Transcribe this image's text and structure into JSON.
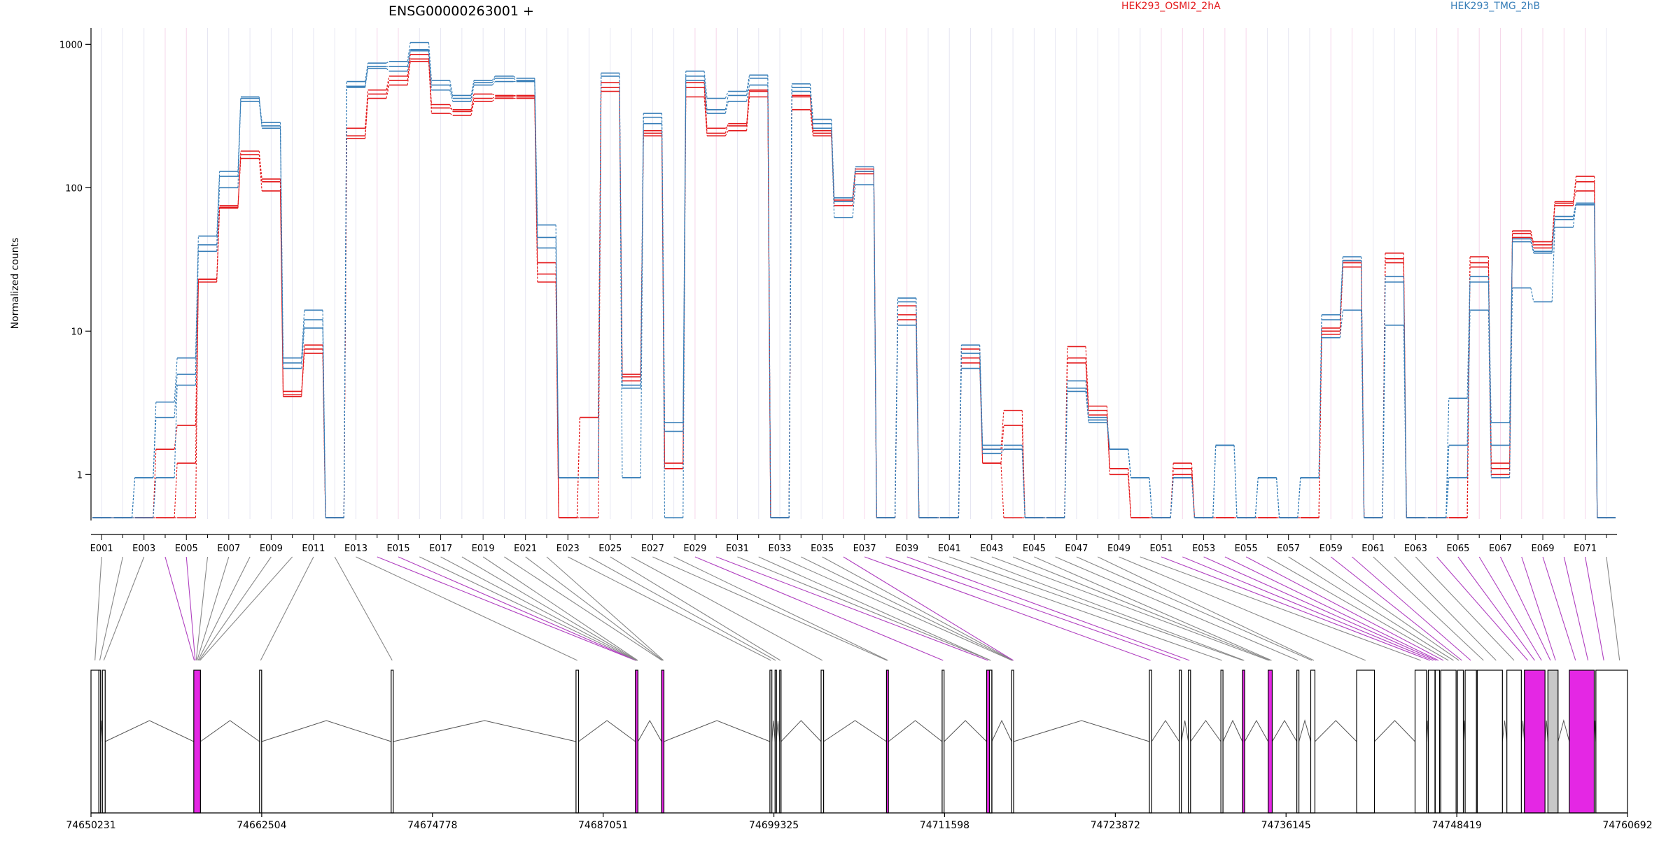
{
  "chart_data": {
    "type": "line",
    "title": "ENSG00000263001 +",
    "ylabel": "Normalized counts",
    "yscale": "log",
    "ylim": [
      0.5,
      1300
    ],
    "ytick_labels": [
      "1",
      "10",
      "100",
      "1000"
    ],
    "ytick_values": [
      1,
      10,
      100,
      1000
    ],
    "legend_position": "top",
    "colors": {
      "HEK293_OSMI2_2hA": "#e41a1c",
      "HEK293_TMG_2hB": "#377eb8",
      "exon_plain": "#ffffff",
      "exon_highlight": "#e427e4",
      "exon_grey": "#c8c8c8",
      "connector_plain": "#888888",
      "connector_highlight": "#b040c0"
    },
    "categories": [
      "E001",
      "E002",
      "E003",
      "E004",
      "E005",
      "E006",
      "E007",
      "E008",
      "E009",
      "E010",
      "E011",
      "E012",
      "E013",
      "E014",
      "E015",
      "E016",
      "E017",
      "E018",
      "E019",
      "E020",
      "E021",
      "E022",
      "E023",
      "E024",
      "E025",
      "E026",
      "E027",
      "E028",
      "E029",
      "E030",
      "E031",
      "E032",
      "E033",
      "E034",
      "E035",
      "E036",
      "E037",
      "E038",
      "E039",
      "E040",
      "E041",
      "E042",
      "E043",
      "E044",
      "E045",
      "E046",
      "E047",
      "E048",
      "E049",
      "E050",
      "E051",
      "E052",
      "E053",
      "E054",
      "E055",
      "E056",
      "E057",
      "E058",
      "E059",
      "E060",
      "E061",
      "E062",
      "E063",
      "E064",
      "E065",
      "E066",
      "E067",
      "E068",
      "E069",
      "E070",
      "E071",
      "E072"
    ],
    "x_tick_labels": [
      "E001",
      "E003",
      "E005",
      "E007",
      "E009",
      "E011",
      "E013",
      "E015",
      "E017",
      "E019",
      "E021",
      "E023",
      "E025",
      "E027",
      "E029",
      "E031",
      "E033",
      "E035",
      "E037",
      "E039",
      "E041",
      "E043",
      "E045",
      "E047",
      "E049",
      "E051",
      "E053",
      "E055",
      "E057",
      "E059",
      "E061",
      "E063",
      "E065",
      "E067",
      "E069",
      "E071"
    ],
    "series": [
      {
        "name": "HEK293_OSMI2_2hA",
        "values": [
          0.5,
          0.5,
          0.5,
          1.5,
          2.2,
          22,
          72,
          170,
          115,
          3.8,
          7.5,
          0.5,
          230,
          450,
          560,
          850,
          360,
          350,
          450,
          440,
          440,
          25,
          0.5,
          2.5,
          540,
          4.5,
          240,
          1.1,
          540,
          260,
          270,
          480,
          0.5,
          430,
          250,
          82,
          135,
          0.5,
          13,
          0.5,
          0.5,
          6.5,
          1.2,
          2.2,
          0.5,
          0.5,
          6.5,
          2.8,
          1.0,
          0.5,
          0.5,
          1.1,
          0.5,
          0.5,
          0.5,
          0.5,
          0.5,
          0.5,
          10,
          30,
          0.5,
          32,
          0.5,
          0.5,
          0.5,
          30,
          1.2,
          50,
          40,
          80,
          110,
          0.5
        ]
      },
      {
        "name": "HEK293_OSMI2_2hA",
        "values": [
          0.5,
          0.5,
          0.5,
          0.5,
          1.2,
          23,
          73,
          180,
          110,
          3.5,
          8.0,
          0.5,
          260,
          480,
          600,
          790,
          380,
          340,
          420,
          430,
          430,
          30,
          0.5,
          2.5,
          500,
          5.0,
          250,
          1.2,
          500,
          240,
          280,
          470,
          0.5,
          440,
          240,
          80,
          130,
          0.5,
          15,
          0.5,
          0.5,
          7.5,
          1.5,
          2.8,
          0.5,
          0.5,
          7.8,
          3.0,
          1.1,
          0.5,
          0.5,
          1.2,
          0.5,
          0.5,
          0.5,
          0.5,
          0.5,
          0.5,
          10.5,
          28,
          0.5,
          35,
          0.5,
          0.5,
          0.5,
          33,
          1.0,
          48,
          38,
          75,
          120,
          0.5
        ]
      },
      {
        "name": "HEK293_OSMI2_2hA",
        "values": [
          0.5,
          0.5,
          0.5,
          0.5,
          0.5,
          23,
          75,
          160,
          95,
          3.6,
          7.0,
          0.5,
          220,
          420,
          520,
          760,
          330,
          320,
          400,
          420,
          420,
          22,
          0.5,
          0.5,
          470,
          4.8,
          230,
          1.1,
          430,
          230,
          250,
          430,
          0.5,
          350,
          230,
          75,
          125,
          0.5,
          12,
          0.5,
          0.5,
          6.0,
          1.2,
          0.5,
          0.5,
          0.5,
          6.0,
          2.6,
          1.1,
          0.5,
          0.5,
          1.0,
          0.5,
          0.5,
          0.5,
          0.5,
          0.5,
          0.5,
          9.5,
          31,
          0.5,
          30,
          0.5,
          0.5,
          0.5,
          28,
          1.1,
          45,
          42,
          78,
          95,
          0.5
        ]
      },
      {
        "name": "HEK293_TMG_2hB",
        "values": [
          0.5,
          0.5,
          0.95,
          3.2,
          6.5,
          46,
          130,
          420,
          285,
          6.5,
          14,
          0.5,
          550,
          740,
          760,
          1030,
          560,
          440,
          560,
          600,
          580,
          55,
          0.95,
          0.95,
          630,
          4.0,
          330,
          2.3,
          650,
          420,
          470,
          610,
          0.5,
          530,
          300,
          85,
          140,
          0.5,
          17,
          0.5,
          0.5,
          8.0,
          1.6,
          1.6,
          0.5,
          0.5,
          4.5,
          2.5,
          1.5,
          0.95,
          0.5,
          0.95,
          0.5,
          1.6,
          0.5,
          0.95,
          0.5,
          0.95,
          13,
          33,
          0.5,
          24,
          0.5,
          0.5,
          3.4,
          24,
          2.3,
          44,
          36,
          63,
          78,
          0.5
        ]
      },
      {
        "name": "HEK293_TMG_2hB",
        "values": [
          0.5,
          0.5,
          0.95,
          2.5,
          5.0,
          40,
          120,
          400,
          270,
          6.0,
          12,
          0.5,
          510,
          700,
          700,
          920,
          520,
          420,
          540,
          580,
          560,
          45,
          0.95,
          0.95,
          600,
          4.2,
          310,
          2.0,
          600,
          350,
          440,
          580,
          0.5,
          500,
          280,
          80,
          130,
          0.5,
          16,
          0.5,
          0.5,
          7.0,
          1.5,
          1.5,
          0.5,
          0.5,
          4.0,
          2.3,
          1.5,
          0.95,
          0.5,
          0.95,
          0.5,
          1.6,
          0.5,
          0.95,
          0.5,
          0.95,
          12,
          31,
          0.5,
          22,
          0.5,
          0.5,
          1.6,
          22,
          1.6,
          42,
          35,
          60,
          76,
          0.5
        ]
      },
      {
        "name": "HEK293_TMG_2hB",
        "values": [
          0.5,
          0.5,
          0.5,
          0.95,
          4.2,
          36,
          100,
          430,
          260,
          5.5,
          10.5,
          0.5,
          500,
          680,
          650,
          900,
          480,
          400,
          520,
          550,
          550,
          38,
          0.95,
          0.95,
          600,
          0.95,
          280,
          0.5,
          560,
          330,
          400,
          520,
          0.5,
          470,
          260,
          62,
          105,
          0.5,
          11,
          0.5,
          0.5,
          5.5,
          1.4,
          1.5,
          0.5,
          0.5,
          3.8,
          2.4,
          1.5,
          0.95,
          0.5,
          0.95,
          0.5,
          1.6,
          0.5,
          0.95,
          0.5,
          0.95,
          9,
          14,
          0.5,
          11,
          0.5,
          0.5,
          0.95,
          14,
          0.95,
          20,
          16,
          53,
          78,
          0.5
        ]
      }
    ],
    "gene_axis_ticks": [
      "74650231",
      "74662504",
      "74674778",
      "74687051",
      "74699325",
      "74711598",
      "74723872",
      "74736145",
      "74748419",
      "74760692"
    ],
    "gene_axis_range": [
      74650231,
      74760692
    ],
    "exon_starts": [
      74650231,
      74650801,
      74651050,
      74657620,
      74662350,
      74671810,
      74685100,
      74689370,
      74691250,
      74699040,
      74699410,
      74699740,
      74702720,
      74707420,
      74711420,
      74714620,
      74714820,
      74716420,
      74726320,
      74728470,
      74729120,
      74731460,
      74733010,
      74734860,
      74736920,
      74737920,
      74741220,
      74745420,
      74746370,
      74746870,
      74747270,
      74748470,
      74749020,
      74749890,
      74752020,
      74753280,
      74754970,
      74756510,
      74758420
    ],
    "exon_ends": [
      74650801,
      74650920,
      74651250,
      74658100,
      74662500,
      74671960,
      74685280,
      74689550,
      74691420,
      74699180,
      74699500,
      74699840,
      74702900,
      74707560,
      74711560,
      74715000,
      74714990,
      74716560,
      74726480,
      74728620,
      74729280,
      74731610,
      74733170,
      74735150,
      74737070,
      74738220,
      74742500,
      74746240,
      74746850,
      74747180,
      74748370,
      74748890,
      74749830,
      74751700,
      74753060,
      74754760,
      74755700,
      74758300,
      74760692
    ],
    "exon_fill": [
      "plain",
      "plain",
      "plain",
      "highlight",
      "plain",
      "plain",
      "plain",
      "highlight",
      "highlight",
      "plain",
      "plain",
      "plain",
      "plain",
      "highlight",
      "plain",
      "highlight",
      "plain",
      "plain",
      "plain",
      "plain",
      "plain",
      "plain",
      "highlight",
      "highlight",
      "plain",
      "plain",
      "plain",
      "plain",
      "plain",
      "plain",
      "plain",
      "plain",
      "plain",
      "plain",
      "plain",
      "highlight",
      "grey",
      "highlight",
      "plain"
    ],
    "bin_exon_map": [
      0,
      1,
      2,
      3,
      3,
      3,
      3,
      3,
      3,
      3,
      4,
      5,
      6,
      7,
      7,
      7,
      7,
      7,
      7,
      8,
      8,
      8,
      9,
      10,
      11,
      12,
      13,
      13,
      14,
      15,
      15,
      16,
      17,
      17,
      17,
      17,
      18,
      19,
      20,
      21,
      22,
      22,
      23,
      23,
      23,
      24,
      25,
      25,
      26,
      27,
      28,
      28,
      29,
      29,
      30,
      30,
      30,
      31,
      31,
      32,
      33,
      33,
      34,
      35,
      35,
      35,
      36,
      36,
      37,
      37,
      38,
      38
    ],
    "connector_highlight_bins": [
      3,
      4,
      13,
      14,
      28,
      29,
      35,
      36,
      37,
      38,
      50,
      51,
      52,
      53,
      54,
      58,
      59,
      63,
      64,
      65,
      66,
      67,
      68,
      69,
      70
    ]
  }
}
